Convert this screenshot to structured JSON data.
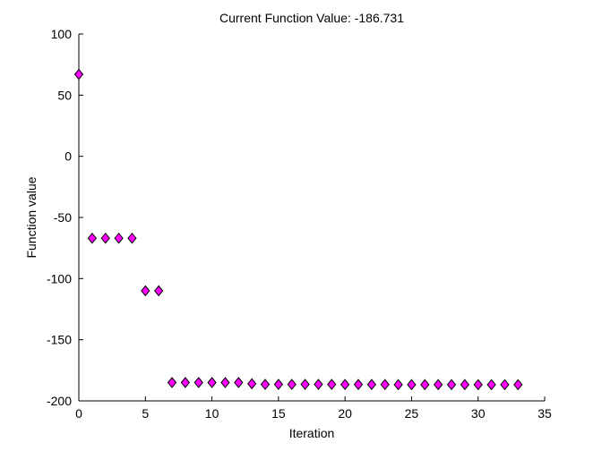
{
  "chart_data": {
    "type": "scatter",
    "title": "Current Function Value: -186.731",
    "xlabel": "Iteration",
    "ylabel": "Function value",
    "xlim": [
      0,
      35
    ],
    "ylim": [
      -200,
      100
    ],
    "xticks": [
      0,
      5,
      10,
      15,
      20,
      25,
      30,
      35
    ],
    "yticks": [
      -200,
      -150,
      -100,
      -50,
      0,
      50,
      100
    ],
    "grid": false,
    "marker": "diamond",
    "marker_face_color": "#ff00ff",
    "marker_edge_color": "#000000",
    "series": [
      {
        "x": [
          0,
          1,
          2,
          3,
          4,
          5,
          6,
          7,
          8,
          9,
          10,
          11,
          12,
          13,
          14,
          15,
          16,
          17,
          18,
          19,
          20,
          21,
          22,
          23,
          24,
          25,
          26,
          27,
          28,
          29,
          30,
          31,
          32,
          33
        ],
        "y": [
          67,
          -67,
          -67,
          -67,
          -67,
          -110,
          -110,
          -185,
          -185,
          -185,
          -185,
          -185,
          -185,
          -186,
          -186.5,
          -186.5,
          -186.5,
          -186.5,
          -186.5,
          -186.5,
          -186.6,
          -186.6,
          -186.6,
          -186.6,
          -186.7,
          -186.7,
          -186.7,
          -186.7,
          -186.7,
          -186.7,
          -186.731,
          -186.731,
          -186.731,
          -186.731
        ]
      }
    ]
  }
}
